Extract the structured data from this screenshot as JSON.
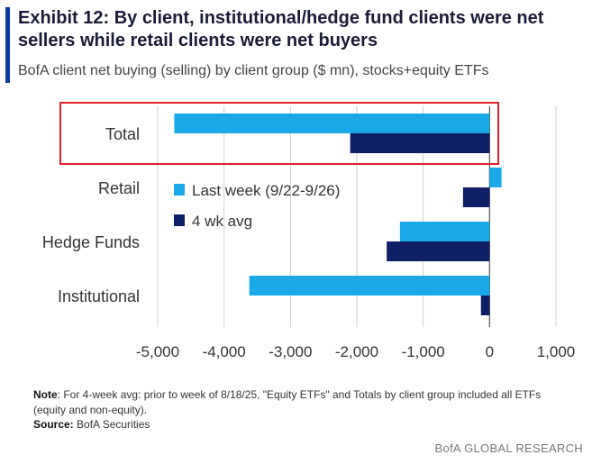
{
  "header": {
    "title": "Exhibit 12: By client, institutional/hedge fund clients were net sellers while retail clients were net buyers",
    "subtitle": "BofA client net buying (selling) by client group ($ mn), stocks+equity ETFs"
  },
  "footer": {
    "note_label": "Note",
    "note_text": ": For 4-week avg: prior to week of 8/18/25, \"Equity ETFs\" and Totals by client group included all ETFs (equity and non-equity).",
    "source_label": "Source:",
    "source_text": " BofA Securities",
    "brand": "BofA GLOBAL RESEARCH"
  },
  "colors": {
    "last_week": "#1aa8e6",
    "four_wk_avg": "#0e1f66",
    "highlight_box": "#e0202a",
    "grid": "#cfcfcf"
  },
  "chart_data": {
    "type": "bar",
    "orientation": "horizontal",
    "categories": [
      "Total",
      "Retail",
      "Hedge Funds",
      "Institutional"
    ],
    "series": [
      {
        "name": "Last week (9/22-9/26)",
        "values": [
          -4750,
          180,
          -1350,
          -3620
        ]
      },
      {
        "name": "4 wk avg",
        "values": [
          -2100,
          -400,
          -1550,
          -130
        ]
      }
    ],
    "xlim": [
      -5000,
      1000
    ],
    "xticks": [
      -5000,
      -4000,
      -3000,
      -2000,
      -1000,
      0,
      1000
    ],
    "xtick_labels": [
      "-5,000",
      "-4,000",
      "-3,000",
      "-2,000",
      "-1,000",
      "0",
      "1,000"
    ],
    "grid": "vertical",
    "legend_placement": "inside-top-left",
    "highlighted_category": "Total"
  }
}
